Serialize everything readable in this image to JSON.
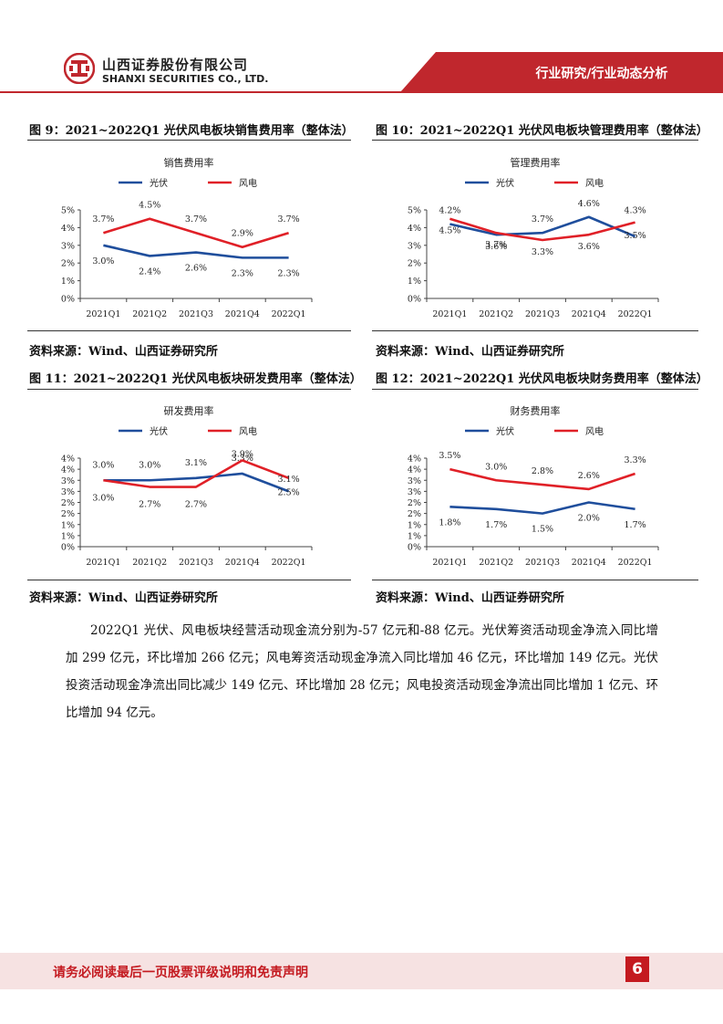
{
  "header": {
    "company_cn": "山西证券股份有限公司",
    "company_en": "SHANXI SECURITIES CO., LTD.",
    "report_type": "行业研究/行业动态分析",
    "brand_color": "#c0272d"
  },
  "figures": [
    {
      "title": "图 9：2021~2022Q1 光伏风电板块销售费用率（整体法）",
      "source": "资料来源：Wind、山西证券研究所",
      "chart_data": {
        "type": "line",
        "title": "销售费用率",
        "categories": [
          "2021Q1",
          "2021Q2",
          "2021Q3",
          "2021Q4",
          "2022Q1"
        ],
        "yticks": [
          "0%",
          "1%",
          "2%",
          "3%",
          "4%",
          "5%"
        ],
        "ylim": [
          0,
          5
        ],
        "series": [
          {
            "name": "光伏",
            "color": "#1f4e9c",
            "values": [
              3.0,
              2.4,
              2.6,
              2.3,
              2.3
            ],
            "labels": [
              "3.0%",
              "2.4%",
              "2.6%",
              "2.3%",
              "2.3%"
            ]
          },
          {
            "name": "风电",
            "color": "#e02027",
            "values": [
              3.7,
              4.5,
              3.7,
              2.9,
              3.7
            ],
            "labels": [
              "3.7%",
              "4.5%",
              "3.7%",
              "2.9%",
              "3.7%"
            ]
          }
        ]
      }
    },
    {
      "title": "图 10：2021~2022Q1 光伏风电板块管理费用率（整体法）",
      "source": "资料来源：Wind、山西证券研究所",
      "chart_data": {
        "type": "line",
        "title": "管理费用率",
        "categories": [
          "2021Q1",
          "2021Q2",
          "2021Q3",
          "2021Q4",
          "2022Q1"
        ],
        "yticks": [
          "0%",
          "1%",
          "2%",
          "3%",
          "4%",
          "5%"
        ],
        "ylim": [
          0,
          5
        ],
        "series": [
          {
            "name": "光伏",
            "color": "#1f4e9c",
            "values": [
              4.2,
              3.6,
              3.7,
              4.6,
              3.5
            ],
            "labels": [
              "4.2%",
              "3.6%",
              "3.7%",
              "4.6%",
              "3.5%"
            ]
          },
          {
            "name": "风电",
            "color": "#e02027",
            "values": [
              4.5,
              3.7,
              3.3,
              3.6,
              4.3
            ],
            "labels": [
              "4.5%",
              "3.7%",
              "3.3%",
              "3.6%",
              "4.3%"
            ]
          }
        ]
      }
    },
    {
      "title": "图 11：2021~2022Q1 光伏风电板块研发费用率（整体法）",
      "source": "资料来源：Wind、山西证券研究所",
      "chart_data": {
        "type": "line",
        "title": "研发费用率",
        "categories": [
          "2021Q1",
          "2021Q2",
          "2021Q3",
          "2021Q4",
          "2022Q1"
        ],
        "yticks": [
          "0%",
          "1%",
          "1%",
          "2%",
          "2%",
          "3%",
          "3%",
          "4%",
          "4%"
        ],
        "ylim": [
          0,
          4
        ],
        "series": [
          {
            "name": "光伏",
            "color": "#1f4e9c",
            "values": [
              3.0,
              3.0,
              3.1,
              3.3,
              2.5
            ],
            "labels": [
              "3.0%",
              "3.0%",
              "3.1%",
              "3.3%",
              "2.5%"
            ]
          },
          {
            "name": "风电",
            "color": "#e02027",
            "values": [
              3.0,
              2.7,
              2.7,
              3.9,
              3.1
            ],
            "labels": [
              "3.0%",
              "2.7%",
              "2.7%",
              "3.9%",
              "3.1%"
            ]
          }
        ]
      }
    },
    {
      "title": "图 12：2021~2022Q1 光伏风电板块财务费用率（整体法）",
      "source": "资料来源：Wind、山西证券研究所",
      "chart_data": {
        "type": "line",
        "title": "财务费用率",
        "categories": [
          "2021Q1",
          "2021Q2",
          "2021Q3",
          "2021Q4",
          "2022Q1"
        ],
        "yticks": [
          "0%",
          "1%",
          "1%",
          "2%",
          "2%",
          "3%",
          "3%",
          "4%",
          "4%"
        ],
        "ylim": [
          0,
          4
        ],
        "series": [
          {
            "name": "光伏",
            "color": "#1f4e9c",
            "values": [
              1.8,
              1.7,
              1.5,
              2.0,
              1.7
            ],
            "labels": [
              "1.8%",
              "1.7%",
              "1.5%",
              "2.0%",
              "1.7%"
            ]
          },
          {
            "name": "风电",
            "color": "#e02027",
            "values": [
              3.5,
              3.0,
              2.8,
              2.6,
              3.3
            ],
            "labels": [
              "3.5%",
              "3.0%",
              "2.8%",
              "2.6%",
              "3.3%"
            ]
          }
        ]
      }
    }
  ],
  "body": {
    "paragraph": "2022Q1 光伏、风电板块经营活动现金流分别为-57 亿元和-88 亿元。光伏筹资活动现金净流入同比增加 299 亿元，环比增加 266 亿元；风电筹资活动现金净流入同比增加 46 亿元，环比增加 149 亿元。光伏投资活动现金净流出同比减少 149 亿元、环比增加 28 亿元；风电投资活动现金净流出同比增加 1 亿元、环比增加 94 亿元。"
  },
  "footer": {
    "disclaimer": "请务必阅读最后一页股票评级说明和免责声明",
    "page_number": "6"
  }
}
